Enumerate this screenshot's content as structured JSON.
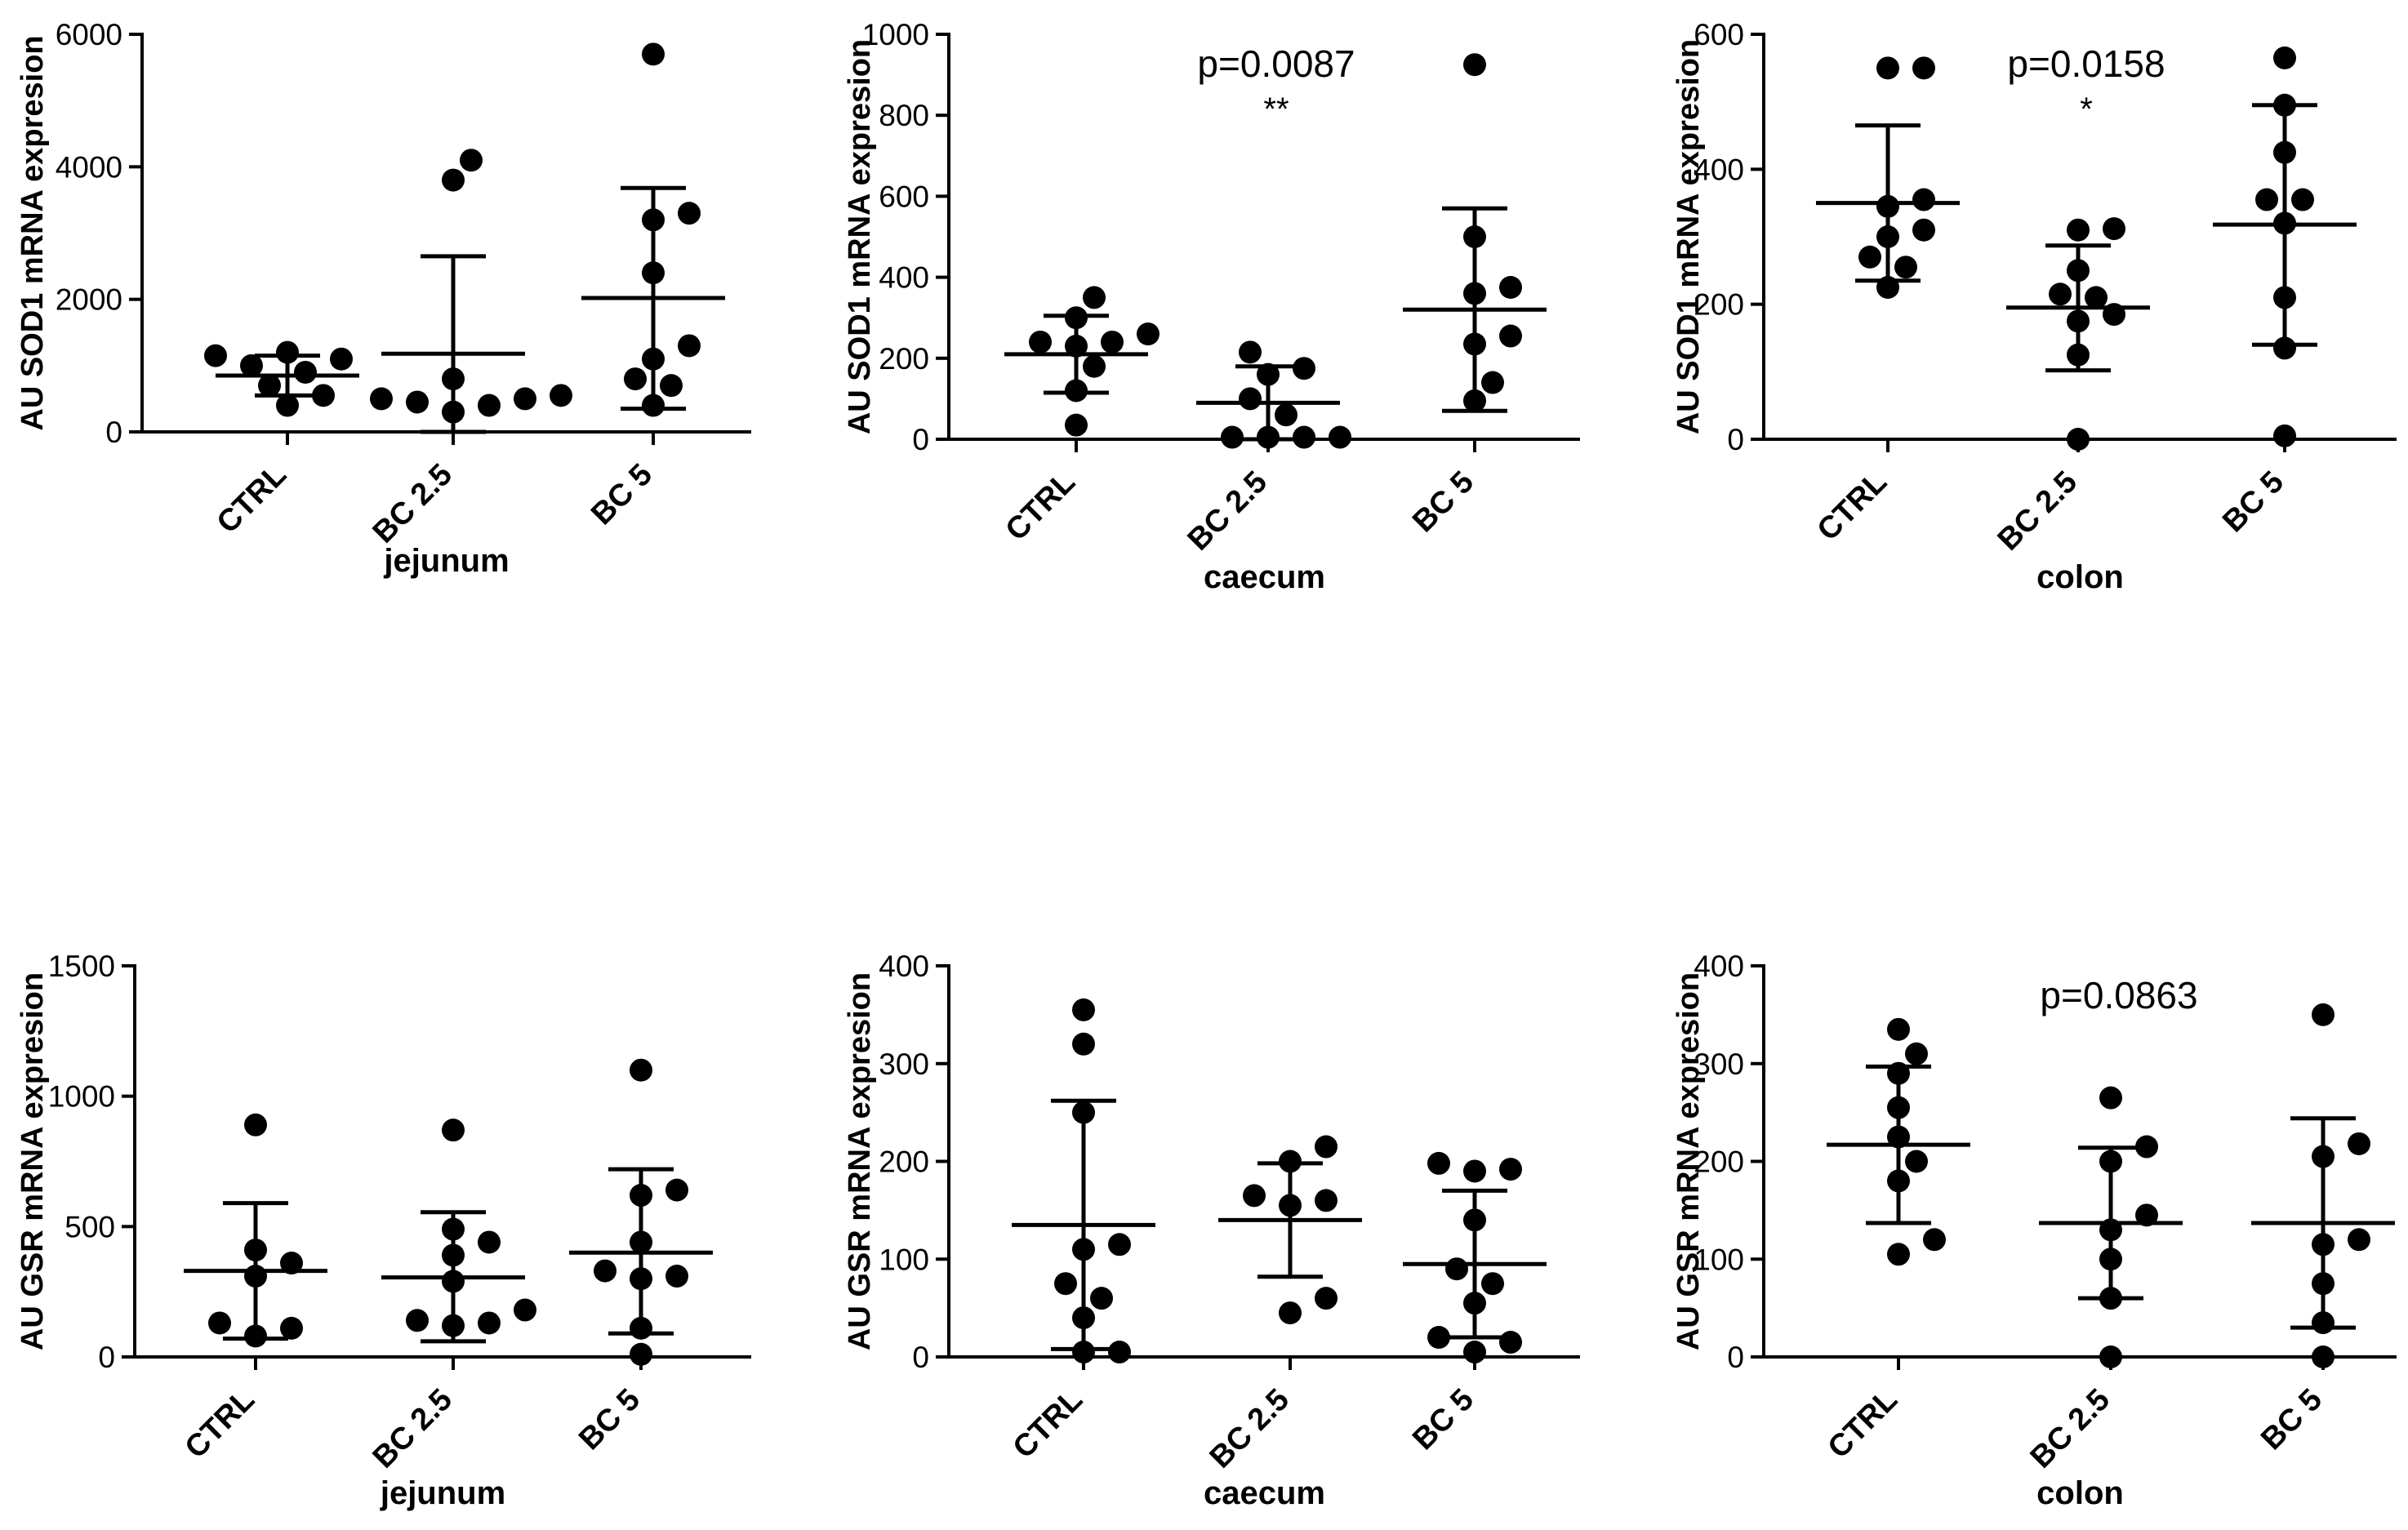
{
  "chart_data": [
    {
      "type": "scatter",
      "ylabel": "AU SOD1 mRNA expresion",
      "xlabel": "jejunum",
      "categories": [
        "CTRL",
        "BC 2.5",
        "BC 5"
      ],
      "yticks": [
        0,
        2000,
        4000,
        6000
      ],
      "ylim": [
        0,
        6000
      ],
      "pvalue": "",
      "significance": "",
      "series": [
        {
          "name": "CTRL",
          "values": [
            1200,
            1150,
            1100,
            1000,
            900,
            700,
            550,
            400
          ],
          "mean": 850,
          "sd_low": 550,
          "sd_high": 1150
        },
        {
          "name": "BC 2.5",
          "values": [
            4100,
            3800,
            800,
            550,
            500,
            500,
            450,
            400,
            300
          ],
          "mean": 1180,
          "sd_low": 0,
          "sd_high": 2650
        },
        {
          "name": "BC 5",
          "values": [
            5700,
            3300,
            3200,
            2400,
            1300,
            1100,
            800,
            700,
            400
          ],
          "mean": 2020,
          "sd_low": 350,
          "sd_high": 3680
        }
      ]
    },
    {
      "type": "scatter",
      "ylabel": "AU SOD1 mRNA expresion",
      "xlabel": "caecum",
      "categories": [
        "CTRL",
        "BC 2.5",
        "BC 5"
      ],
      "yticks": [
        0,
        200,
        400,
        600,
        800,
        1000
      ],
      "ylim": [
        0,
        1000
      ],
      "pvalue": "p=0.0087",
      "significance": "**",
      "series": [
        {
          "name": "CTRL",
          "values": [
            350,
            300,
            260,
            240,
            240,
            230,
            180,
            120,
            35
          ],
          "mean": 210,
          "sd_low": 115,
          "sd_high": 305
        },
        {
          "name": "BC 2.5",
          "values": [
            215,
            175,
            160,
            100,
            60,
            5,
            5,
            5,
            5
          ],
          "mean": 90,
          "sd_low": 0,
          "sd_high": 180
        },
        {
          "name": "BC 5",
          "values": [
            925,
            500,
            375,
            360,
            255,
            235,
            140,
            95
          ],
          "mean": 320,
          "sd_low": 70,
          "sd_high": 570
        }
      ]
    },
    {
      "type": "scatter",
      "ylabel": "AU SOD1 mRNA expresion",
      "xlabel": "colon",
      "categories": [
        "CTRL",
        "BC 2.5",
        "BC 5"
      ],
      "yticks": [
        0,
        200,
        400,
        600
      ],
      "ylim": [
        0,
        600
      ],
      "pvalue": "p=0.0158",
      "significance": "*",
      "series": [
        {
          "name": "CTRL",
          "values": [
            550,
            550,
            355,
            345,
            310,
            300,
            270,
            255,
            225
          ],
          "mean": 350,
          "sd_low": 235,
          "sd_high": 465
        },
        {
          "name": "BC 2.5",
          "values": [
            312,
            310,
            250,
            215,
            210,
            185,
            175,
            125,
            0
          ],
          "mean": 195,
          "sd_low": 102,
          "sd_high": 287
        },
        {
          "name": "BC 5",
          "values": [
            565,
            495,
            425,
            355,
            355,
            320,
            210,
            135,
            5
          ],
          "mean": 318,
          "sd_low": 140,
          "sd_high": 495
        }
      ]
    },
    {
      "type": "scatter",
      "ylabel": "AU GSR mRNA expresion",
      "xlabel": "jejunum",
      "categories": [
        "CTRL",
        "BC 2.5",
        "BC 5"
      ],
      "yticks": [
        0,
        500,
        1000,
        1500
      ],
      "ylim": [
        0,
        1500
      ],
      "pvalue": "",
      "significance": "",
      "series": [
        {
          "name": "CTRL",
          "values": [
            890,
            410,
            360,
            310,
            130,
            110,
            80
          ],
          "mean": 330,
          "sd_low": 70,
          "sd_high": 590
        },
        {
          "name": "BC 2.5",
          "values": [
            870,
            490,
            440,
            390,
            290,
            180,
            140,
            130,
            120
          ],
          "mean": 305,
          "sd_low": 60,
          "sd_high": 555
        },
        {
          "name": "BC 5",
          "values": [
            1100,
            640,
            620,
            440,
            330,
            310,
            300,
            110,
            10
          ],
          "mean": 400,
          "sd_low": 90,
          "sd_high": 720
        }
      ]
    },
    {
      "type": "scatter",
      "ylabel": "AU GSR mRNA expresion",
      "xlabel": "caecum",
      "categories": [
        "CTRL",
        "BC 2.5",
        "BC 5"
      ],
      "yticks": [
        0,
        100,
        200,
        300,
        400
      ],
      "ylim": [
        0,
        400
      ],
      "pvalue": "",
      "significance": "",
      "series": [
        {
          "name": "CTRL",
          "values": [
            355,
            320,
            250,
            115,
            110,
            75,
            60,
            40,
            5,
            5
          ],
          "mean": 135,
          "sd_low": 8,
          "sd_high": 262
        },
        {
          "name": "BC 2.5",
          "values": [
            215,
            200,
            165,
            160,
            155,
            60,
            45
          ],
          "mean": 140,
          "sd_low": 82,
          "sd_high": 198
        },
        {
          "name": "BC 5",
          "values": [
            198,
            192,
            190,
            140,
            90,
            75,
            55,
            20,
            15,
            5
          ],
          "mean": 95,
          "sd_low": 20,
          "sd_high": 170
        }
      ]
    },
    {
      "type": "scatter",
      "ylabel": "AU GSR mRNA expresion",
      "xlabel": "colon",
      "categories": [
        "CTRL",
        "BC 2.5",
        "BC 5"
      ],
      "yticks": [
        0,
        100,
        200,
        300,
        400
      ],
      "ylim": [
        0,
        400
      ],
      "pvalue": "p=0.0863",
      "significance": "",
      "series": [
        {
          "name": "CTRL",
          "values": [
            335,
            310,
            290,
            255,
            225,
            200,
            180,
            120,
            105
          ],
          "mean": 217,
          "sd_low": 137,
          "sd_high": 297
        },
        {
          "name": "BC 2.5",
          "values": [
            265,
            215,
            200,
            145,
            130,
            100,
            60,
            0
          ],
          "mean": 137,
          "sd_low": 60,
          "sd_high": 214
        },
        {
          "name": "BC 5",
          "values": [
            350,
            218,
            205,
            120,
            115,
            75,
            35,
            0
          ],
          "mean": 137,
          "sd_low": 30,
          "sd_high": 244
        }
      ]
    }
  ]
}
